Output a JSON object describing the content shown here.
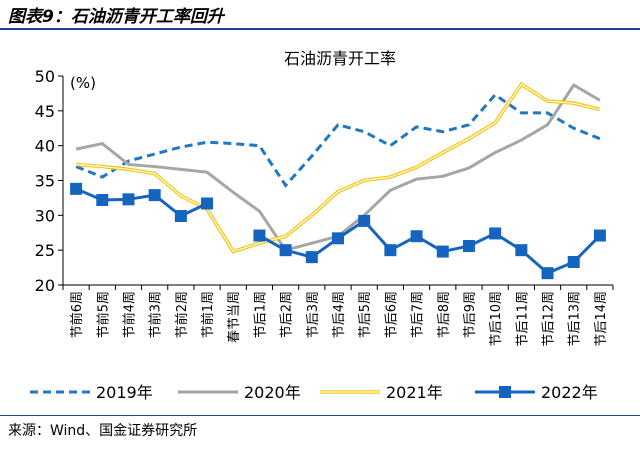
{
  "figure_title": "图表9：石油沥青开工率回升",
  "source": "来源：Wind、国金证券研究所",
  "chart_data": {
    "type": "line",
    "title": "石油沥青开工率",
    "ylabel": "(%)",
    "ylim": [
      20,
      50
    ],
    "yticks": [
      20,
      25,
      30,
      35,
      40,
      45,
      50
    ],
    "legend_position": "bottom",
    "categories": [
      "节前6周",
      "节前5周",
      "节前4周",
      "节前3周",
      "节前2周",
      "节前1周",
      "春节当周",
      "节后1周",
      "节后2周",
      "节后3周",
      "节后4周",
      "节后5周",
      "节后6周",
      "节后7周",
      "节后8周",
      "节后9周",
      "节后10周",
      "节后11周",
      "节后12周",
      "节后13周",
      "节后14周"
    ],
    "series": [
      {
        "name": "2019年",
        "color": "#1f78c1",
        "style": "dashed",
        "values": [
          37,
          35.5,
          37.8,
          38.8,
          39.8,
          40.5,
          40.3,
          40,
          34.3,
          38.5,
          43,
          42,
          40,
          42.7,
          42,
          43,
          47.3,
          44.7,
          44.7,
          42.5,
          41
        ]
      },
      {
        "name": "2020年",
        "color": "#a6a6a6",
        "style": "solid",
        "values": [
          39.5,
          40.3,
          37.3,
          37,
          36.6,
          36.2,
          33.3,
          30.6,
          25,
          26,
          27,
          30,
          33.6,
          35.2,
          35.6,
          36.8,
          39,
          40.8,
          43,
          48.7,
          46.5
        ]
      },
      {
        "name": "2021年",
        "color": "#f5c400",
        "style": "double",
        "values": [
          37.3,
          37,
          36.6,
          36,
          32.8,
          30.9,
          24.8,
          26,
          27,
          30,
          33.4,
          35,
          35.5,
          36.9,
          39,
          41,
          43.3,
          48.8,
          46.4,
          46.1,
          45.2
        ]
      },
      {
        "name": "2022年",
        "color": "#1565c0",
        "style": "marker",
        "values": [
          33.8,
          32.2,
          32.3,
          32.9,
          29.9,
          31.7,
          null,
          27.1,
          25,
          24,
          26.7,
          29.2,
          25,
          27,
          24.8,
          25.6,
          27.4,
          25,
          21.7,
          23.3,
          27.1
        ]
      }
    ]
  }
}
